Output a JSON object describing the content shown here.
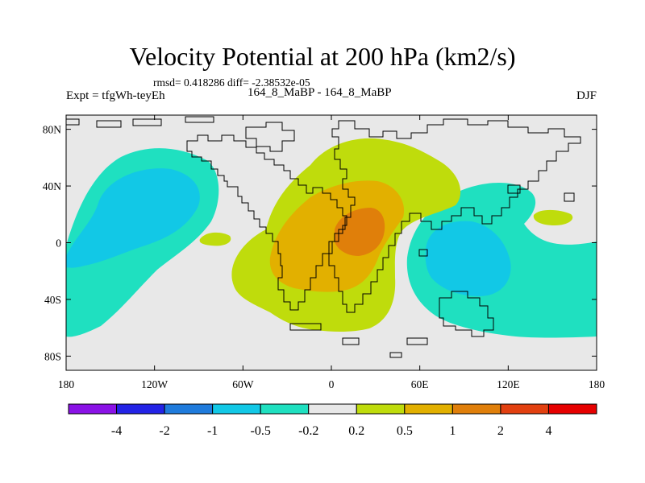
{
  "title": "Velocity Potential at 200 hPa (km2/s)",
  "stats": "rmsd= 0.418286 diff= -2.38532e-05",
  "experiment": "Expt = tfgWh-teyEh",
  "case_pair": "164_8_MaBP - 164_8_MaBP",
  "season": "DJF",
  "axes": {
    "x_ticks": [
      {
        "value": -180,
        "label": "180"
      },
      {
        "value": -120,
        "label": "120W"
      },
      {
        "value": -60,
        "label": "60W"
      },
      {
        "value": 0,
        "label": "0"
      },
      {
        "value": 60,
        "label": "60E"
      },
      {
        "value": 120,
        "label": "120E"
      },
      {
        "value": 180,
        "label": "180"
      }
    ],
    "y_ticks": [
      {
        "value": 80,
        "label": "80N"
      },
      {
        "value": 40,
        "label": "40N"
      },
      {
        "value": 0,
        "label": "0"
      },
      {
        "value": -40,
        "label": "40S"
      },
      {
        "value": -80,
        "label": "80S"
      }
    ],
    "lon_range": [
      -180,
      180
    ],
    "lat_range": [
      -90,
      90
    ]
  },
  "colorbar": {
    "colors": [
      "#8a12e6",
      "#2323e6",
      "#1f7bdc",
      "#12c8e6",
      "#1fe0c0",
      "#e8e8e8",
      "#bfdc0c",
      "#e2b000",
      "#e07f0a",
      "#e24010",
      "#e60000"
    ],
    "labels": [
      "-4",
      "-2",
      "-1",
      "-0.5",
      "-0.2",
      "0.2",
      "0.5",
      "1",
      "2",
      "4"
    ]
  },
  "field_colors": {
    "background": "#e8e8e8",
    "neg_light": "#1fe0c0",
    "neg_mid": "#12c8e6",
    "pos_light": "#bfdc0c",
    "pos_mid": "#e2b000",
    "pos_strong": "#e07f0a"
  }
}
